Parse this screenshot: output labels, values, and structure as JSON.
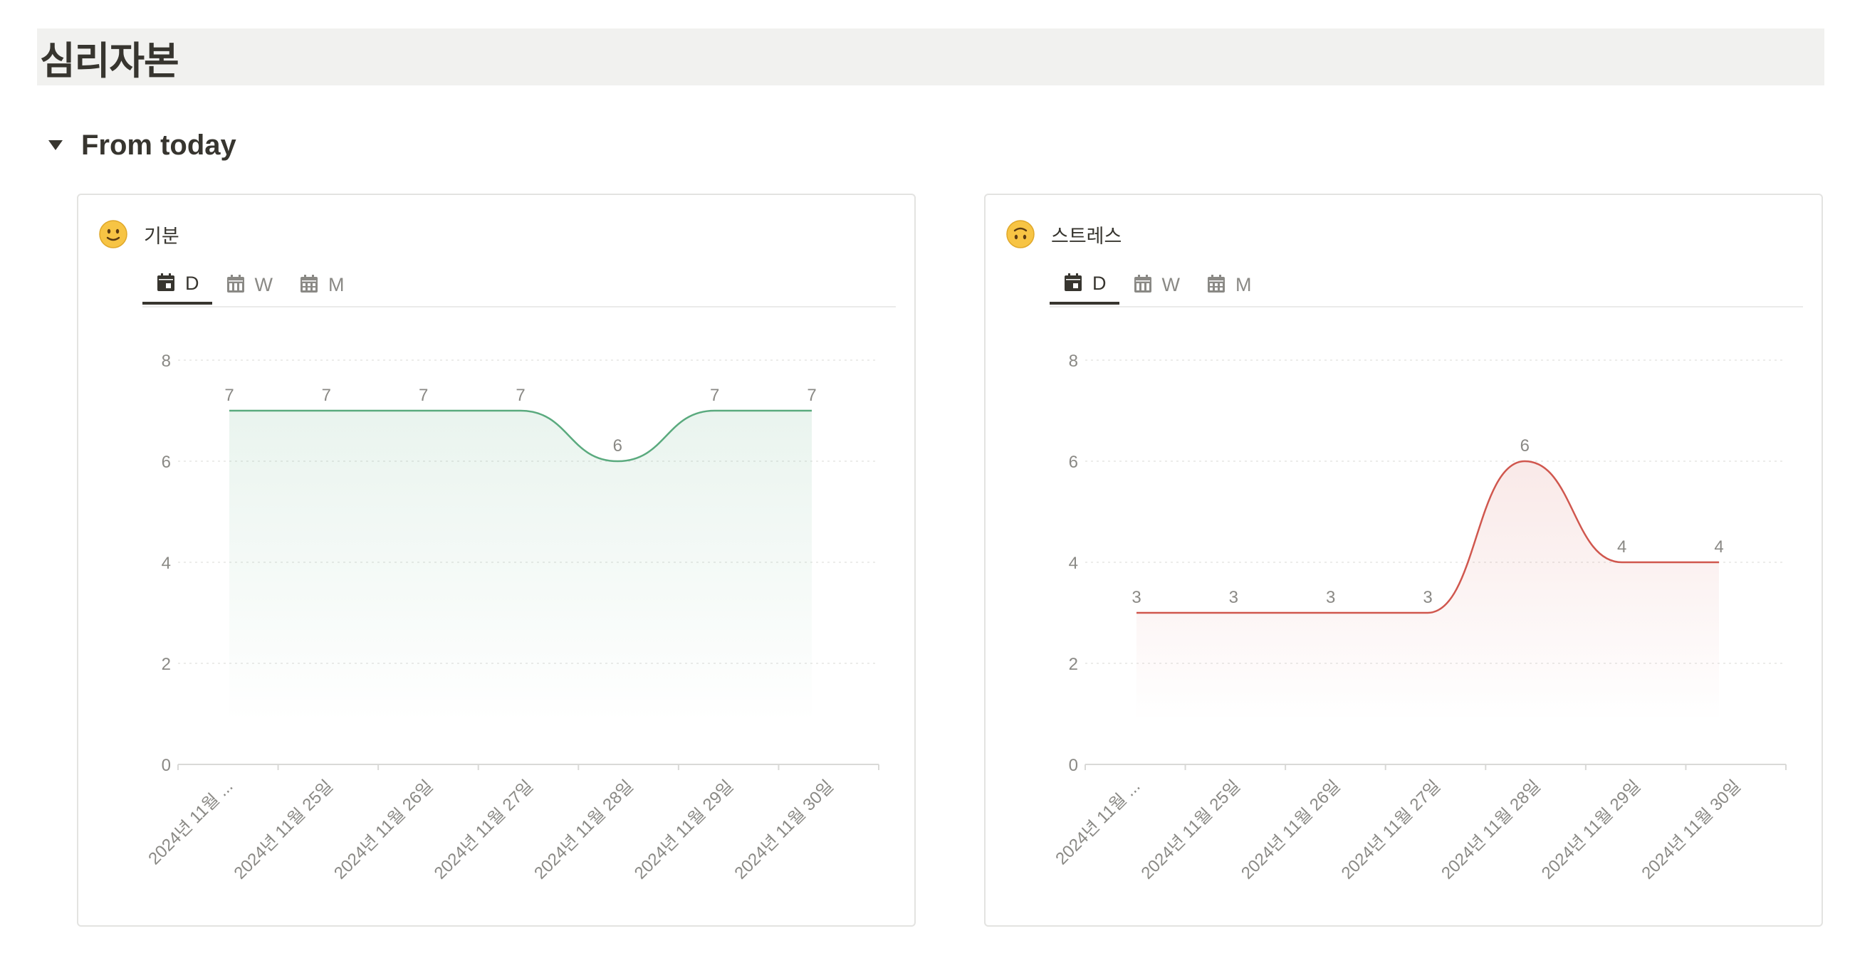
{
  "page": {
    "title": "심리자본"
  },
  "toggle": {
    "label": "From today"
  },
  "tabs": [
    "D",
    "W",
    "M"
  ],
  "cards": [
    {
      "title": "기분",
      "emoji": "slightly-smiling-face-icon"
    },
    {
      "title": "스트레스",
      "emoji": "upside-down-face-icon"
    }
  ],
  "colors": {
    "mood": "#5aaa7e",
    "stress": "#d0574e",
    "grid": "#e6e6e4",
    "text": "#37352f",
    "muted": "#8a8985"
  },
  "chart_data": [
    {
      "type": "area",
      "categories": [
        "2024년 11월 ...",
        "2024년 11월 25일",
        "2024년 11월 26일",
        "2024년 11월 27일",
        "2024년 11월 28일",
        "2024년 11월 29일",
        "2024년 11월 30일"
      ],
      "values": [
        7,
        7,
        7,
        7,
        6,
        7,
        7
      ],
      "ylim": [
        0,
        8
      ],
      "yticks": [
        0,
        2,
        4,
        6,
        8
      ],
      "grid": true,
      "color": "#5aaa7e"
    },
    {
      "type": "area",
      "categories": [
        "2024년 11월 ...",
        "2024년 11월 25일",
        "2024년 11월 26일",
        "2024년 11월 27일",
        "2024년 11월 28일",
        "2024년 11월 29일",
        "2024년 11월 30일"
      ],
      "values": [
        3,
        3,
        3,
        3,
        6,
        4,
        4
      ],
      "ylim": [
        0,
        8
      ],
      "yticks": [
        0,
        2,
        4,
        6,
        8
      ],
      "grid": true,
      "color": "#d0574e"
    }
  ]
}
